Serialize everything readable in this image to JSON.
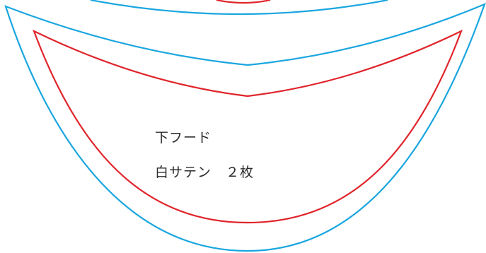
{
  "piece": {
    "name": "下フード",
    "material_and_count": "白サテン　２枚"
  },
  "colors": {
    "seam_allowance_line": "#1aa6df",
    "finished_line": "#e0242b"
  }
}
